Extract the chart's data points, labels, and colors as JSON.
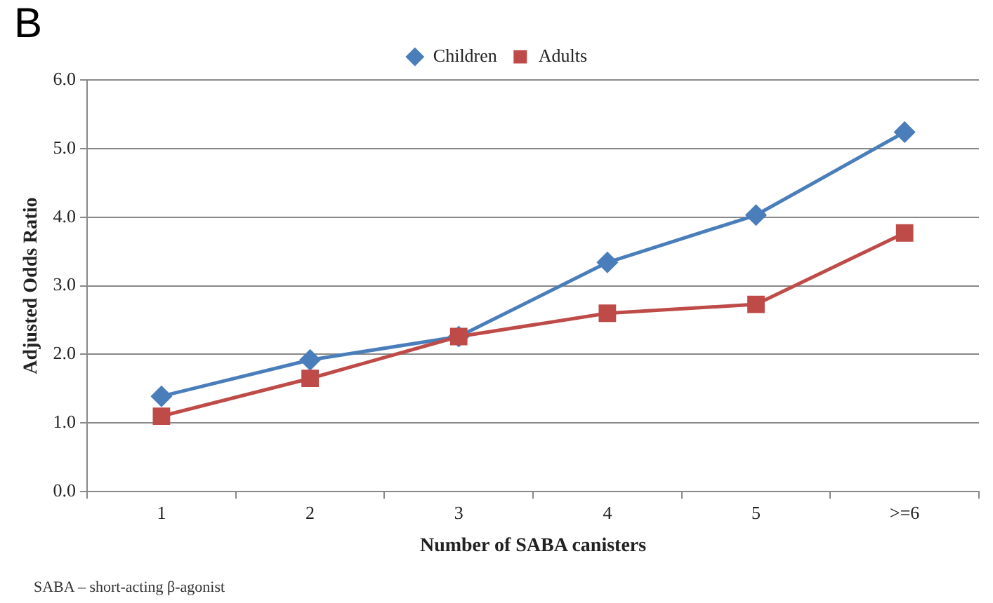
{
  "chart_data": {
    "type": "line",
    "title": "B",
    "xlabel": "Number of SABA canisters",
    "ylabel": "Adjusted Odds Ratio",
    "categories": [
      "1",
      "2",
      "3",
      "4",
      "5",
      ">=6"
    ],
    "series": [
      {
        "name": "Children",
        "color": "#4a7ebb",
        "marker": "diamond",
        "values": [
          1.39,
          1.92,
          2.26,
          3.34,
          4.03,
          5.24
        ]
      },
      {
        "name": "Adults",
        "color": "#be4b48",
        "marker": "square",
        "values": [
          1.1,
          1.65,
          2.26,
          2.6,
          2.73,
          3.77
        ]
      }
    ],
    "ylim": [
      0,
      6
    ],
    "yticks": [
      {
        "value": 0,
        "label": "0.0"
      },
      {
        "value": 1,
        "label": "1.0"
      },
      {
        "value": 2,
        "label": "2.0"
      },
      {
        "value": 3,
        "label": "3.0"
      },
      {
        "value": 4,
        "label": "4.0"
      },
      {
        "value": 5,
        "label": "5.0"
      },
      {
        "value": 6,
        "label": "6.0"
      }
    ],
    "grid": "y",
    "legend": "top",
    "line_style": "solid",
    "annotations": [
      "SABA – short-acting β-agonist"
    ]
  }
}
